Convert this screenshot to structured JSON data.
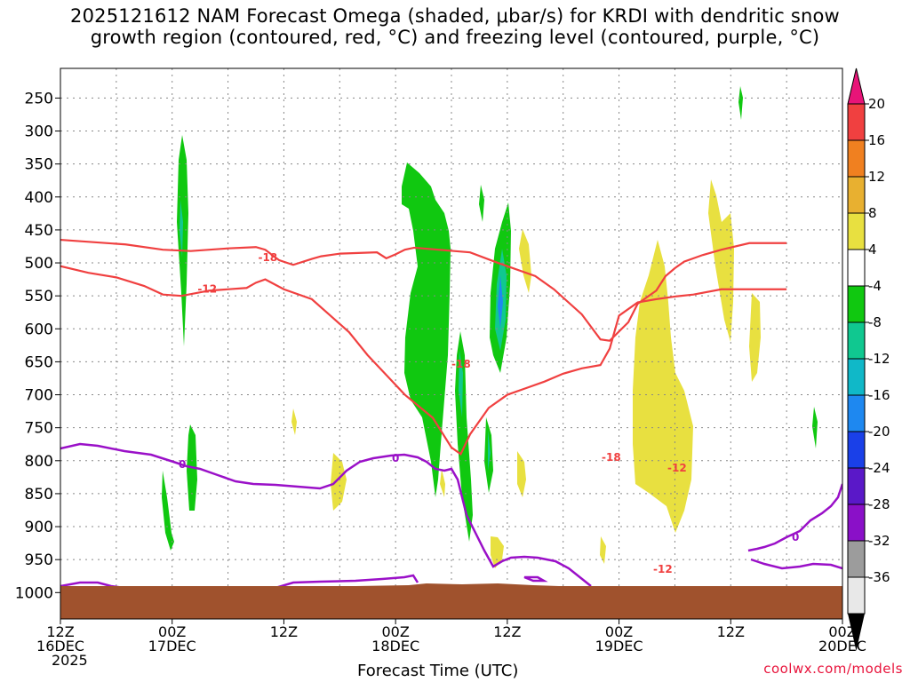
{
  "title": {
    "line1": "2025121612 NAM Forecast Omega (shaded, μbar/s) for KRDI with dendritic snow",
    "line2": "growth region (contoured, red, °C) and freezing level (contoured, purple, °C)"
  },
  "footer": {
    "xlabel": "Forecast Time (UTC)",
    "credit": "coolwx.com/models"
  },
  "colors": {
    "ground": "#a0522d",
    "dgz_contour": "#f04040",
    "freezing_contour": "#9a10c8",
    "grid": "#888888"
  },
  "chart_data": {
    "type": "heatmap",
    "x_hours_from_start": [
      0,
      12,
      24,
      36,
      48,
      60,
      72,
      84,
      96
    ],
    "x_ticks": [
      {
        "line1": "12Z",
        "line2": "16DEC",
        "line3": "2025"
      },
      {
        "line1": "00Z",
        "line2": "17DEC",
        "line3": ""
      },
      {
        "line1": "12Z",
        "line2": "",
        "line3": ""
      },
      {
        "line1": "00Z",
        "line2": "18DEC",
        "line3": ""
      },
      {
        "line1": "12Z",
        "line2": "",
        "line3": ""
      },
      {
        "line1": "00Z",
        "line2": "19DEC",
        "line3": ""
      },
      {
        "line1": "12Z",
        "line2": "",
        "line3": ""
      },
      {
        "line1": "00Z",
        "line2": "20DEC",
        "line3": ""
      }
    ],
    "y_pressure_ticks": [
      250,
      300,
      350,
      400,
      450,
      500,
      550,
      600,
      650,
      700,
      750,
      800,
      850,
      900,
      950,
      1000
    ],
    "ylim": [
      205,
      1040
    ],
    "colorbar": {
      "labels": [
        "20",
        "16",
        "12",
        "8",
        "4",
        "-4",
        "-8",
        "-12",
        "-16",
        "-20",
        "-24",
        "-28",
        "-32",
        "-36"
      ],
      "bins": [
        {
          "color": "#e8e8e8"
        },
        {
          "color": "#9c9c9c"
        },
        {
          "color": "#8a10c8"
        },
        {
          "color": "#5a18c8"
        },
        {
          "color": "#1a40e8"
        },
        {
          "color": "#1e88f0"
        },
        {
          "color": "#10b8c8"
        },
        {
          "color": "#10c890"
        },
        {
          "color": "#10c810"
        },
        {
          "color": "#ffffff"
        },
        {
          "color": "#e8e040"
        },
        {
          "color": "#e8b030"
        },
        {
          "color": "#f08020"
        },
        {
          "color": "#f04040"
        }
      ]
    },
    "dgz_contours": [
      {
        "label": "-18",
        "label_x": 1.0,
        "label_p": 492,
        "points": [
          [
            -21,
            465
          ],
          [
            -14,
            472
          ],
          [
            -10,
            480
          ],
          [
            -7,
            482
          ],
          [
            -3,
            478
          ],
          [
            0,
            476
          ],
          [
            1,
            480
          ],
          [
            2.5,
            496
          ],
          [
            4,
            503
          ],
          [
            6,
            494
          ],
          [
            7,
            490
          ],
          [
            9,
            486
          ],
          [
            13,
            484
          ],
          [
            14,
            493
          ],
          [
            15,
            487
          ],
          [
            16,
            480
          ],
          [
            17,
            477
          ],
          [
            23,
            484
          ],
          [
            26,
            500
          ],
          [
            30,
            520
          ],
          [
            32,
            540
          ],
          [
            35,
            578
          ],
          [
            37,
            616
          ],
          [
            38,
            618
          ],
          [
            40,
            590
          ],
          [
            41,
            562
          ],
          [
            43,
            542
          ],
          [
            44,
            520
          ],
          [
            45,
            508
          ],
          [
            46,
            498
          ],
          [
            48,
            488
          ],
          [
            50,
            480
          ],
          [
            53,
            470
          ],
          [
            57,
            470
          ]
        ]
      },
      {
        "label": "-12",
        "label_x": -5.5,
        "label_p": 540,
        "points": [
          [
            -21,
            505
          ],
          [
            -18,
            515
          ],
          [
            -15,
            522
          ],
          [
            -12,
            535
          ],
          [
            -10,
            548
          ],
          [
            -8,
            550
          ],
          [
            -5,
            542
          ],
          [
            -1,
            538
          ],
          [
            0,
            530
          ],
          [
            1,
            525
          ],
          [
            3,
            540
          ],
          [
            6,
            555
          ],
          [
            8,
            580
          ],
          [
            10,
            605
          ],
          [
            12,
            640
          ],
          [
            14,
            670
          ],
          [
            16,
            700
          ],
          [
            19,
            735
          ],
          [
            21,
            780
          ],
          [
            22,
            790
          ],
          [
            23,
            760
          ],
          [
            25,
            720
          ],
          [
            27,
            700
          ],
          [
            29,
            690
          ],
          [
            31,
            680
          ],
          [
            33,
            668
          ],
          [
            35,
            660
          ],
          [
            37,
            655
          ],
          [
            38,
            630
          ],
          [
            39,
            580
          ],
          [
            41,
            560
          ],
          [
            43,
            555
          ],
          [
            45,
            551
          ],
          [
            47,
            548
          ],
          [
            50,
            540
          ],
          [
            53,
            540
          ],
          [
            57,
            540
          ]
        ]
      }
    ],
    "freezing_contour_label": "0"
  }
}
